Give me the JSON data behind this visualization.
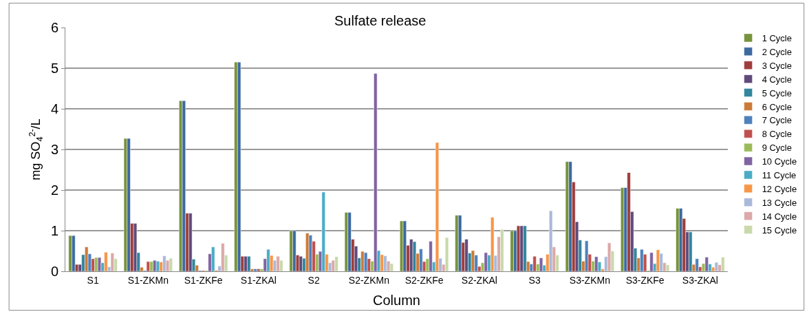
{
  "chart_data": {
    "type": "bar",
    "title": "Sulfate release",
    "xlabel": "Column",
    "ylabel": "mg SO$_{4}$$^{2-}$/L",
    "categories": [
      "S1",
      "S1-ZKMn",
      "S1-ZKFe",
      "S1-ZKAl",
      "S2",
      "S2-ZKMn",
      "S2-ZKFe",
      "S2-ZKAl",
      "S3",
      "S3-ZKMn",
      "S3-ZKFe",
      "S3-ZKAl"
    ],
    "ylim": [
      0,
      6
    ],
    "yticks": [
      0,
      1,
      2,
      3,
      4,
      5,
      6
    ],
    "grid": "y",
    "legend": "right",
    "series": [
      {
        "name": "1 Cycle",
        "color": "#77933c",
        "values": [
          0.88,
          3.27,
          4.2,
          5.15,
          1.0,
          1.45,
          1.24,
          1.38,
          1.0,
          2.7,
          2.06,
          1.55
        ]
      },
      {
        "name": "2 Cycle",
        "color": "#3c6aa0",
        "values": [
          0.88,
          3.27,
          4.2,
          5.15,
          1.0,
          1.45,
          1.24,
          1.38,
          1.0,
          2.7,
          2.06,
          1.55
        ]
      },
      {
        "name": "3 Cycle",
        "color": "#9e3d3b",
        "values": [
          0.17,
          1.18,
          1.43,
          0.37,
          0.4,
          0.79,
          0.64,
          0.71,
          1.12,
          2.2,
          2.43,
          1.3
        ]
      },
      {
        "name": "4 Cycle",
        "color": "#604a7b",
        "values": [
          0.17,
          1.18,
          1.43,
          0.37,
          0.37,
          0.62,
          0.79,
          0.79,
          1.12,
          1.22,
          1.47,
          0.97
        ]
      },
      {
        "name": "5 Cycle",
        "color": "#31859c",
        "values": [
          0.41,
          0.46,
          0.3,
          0.37,
          0.32,
          0.33,
          0.73,
          0.45,
          1.12,
          0.77,
          0.57,
          0.97
        ]
      },
      {
        "name": "6 Cycle",
        "color": "#cc7a38",
        "values": [
          0.6,
          0.1,
          0.15,
          0.06,
          0.94,
          0.49,
          0.44,
          0.51,
          0.24,
          0.25,
          0.33,
          0.17
        ]
      },
      {
        "name": "7 Cycle",
        "color": "#4f81bd",
        "values": [
          0.43,
          0.02,
          0.02,
          0.06,
          0.89,
          0.46,
          0.55,
          0.4,
          0.18,
          0.75,
          0.54,
          0.31
        ]
      },
      {
        "name": "8 Cycle",
        "color": "#c0504d",
        "values": [
          0.31,
          0.24,
          0.02,
          0.06,
          0.74,
          0.31,
          0.24,
          0.12,
          0.37,
          0.42,
          0.42,
          0.11
        ]
      },
      {
        "name": "9 Cycle",
        "color": "#9bbb59",
        "values": [
          0.34,
          0.24,
          0.02,
          0.06,
          0.42,
          0.25,
          0.31,
          0.21,
          0.18,
          0.25,
          0.02,
          0.19
        ]
      },
      {
        "name": "10 Cycle",
        "color": "#8064a2",
        "values": [
          0.34,
          0.27,
          0.43,
          0.31,
          0.49,
          4.87,
          0.74,
          0.46,
          0.33,
          0.36,
          0.46,
          0.35
        ]
      },
      {
        "name": "11 Cycle",
        "color": "#4bacc6",
        "values": [
          0.21,
          0.25,
          0.6,
          0.54,
          1.95,
          0.51,
          0.23,
          0.4,
          0.15,
          0.23,
          0.19,
          0.18
        ]
      },
      {
        "name": "12 Cycle",
        "color": "#f79646",
        "values": [
          0.47,
          0.23,
          0.03,
          0.39,
          0.42,
          0.41,
          3.17,
          1.33,
          0.42,
          0.06,
          0.53,
          0.1
        ]
      },
      {
        "name": "13 Cycle",
        "color": "#aab9d9",
        "values": [
          0.11,
          0.38,
          0.13,
          0.27,
          0.21,
          0.38,
          0.32,
          0.39,
          1.49,
          0.36,
          0.44,
          0.22
        ]
      },
      {
        "name": "14 Cycle",
        "color": "#dba9a8",
        "values": [
          0.45,
          0.27,
          0.69,
          0.37,
          0.27,
          0.25,
          0.17,
          0.85,
          0.6,
          0.7,
          0.21,
          0.16
        ]
      },
      {
        "name": "15 Cycle",
        "color": "#c9d9ab",
        "values": [
          0.31,
          0.32,
          0.4,
          0.27,
          0.36,
          0.19,
          0.83,
          1.03,
          0.4,
          0.5,
          0.16,
          0.35
        ]
      }
    ]
  }
}
